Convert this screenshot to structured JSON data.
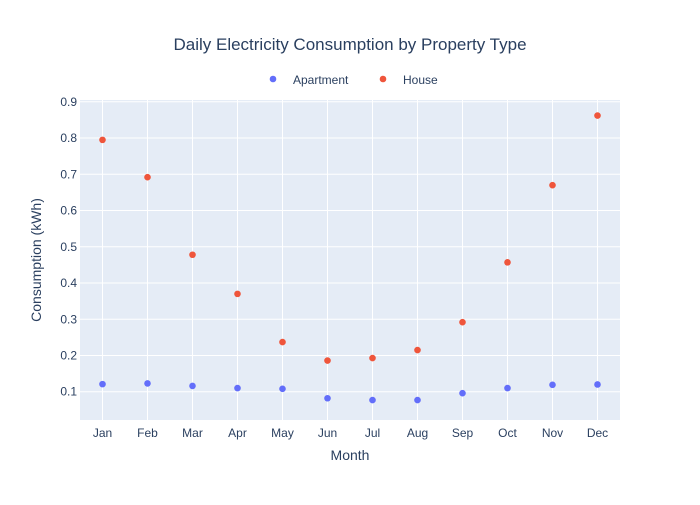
{
  "chart_data": {
    "type": "scatter",
    "title": "Daily Electricity Consumption by Property Type",
    "xlabel": "Month",
    "ylabel": "Consumption (kWh)",
    "categories": [
      "Jan",
      "Feb",
      "Mar",
      "Apr",
      "May",
      "Jun",
      "Jul",
      "Aug",
      "Sep",
      "Oct",
      "Nov",
      "Dec"
    ],
    "ylim": [
      0.022,
      0.905
    ],
    "yticks": [
      0.1,
      0.2,
      0.3,
      0.4,
      0.5,
      0.6,
      0.7,
      0.8,
      0.9
    ],
    "grid": true,
    "legend_position": "top-center",
    "colors": {
      "plot_background": "#e5ecf6",
      "grid": "#ffffff",
      "text": "#2a3f5f"
    },
    "series": [
      {
        "name": "Apartment",
        "color": "#636efa",
        "values": [
          0.121,
          0.123,
          0.116,
          0.11,
          0.108,
          0.082,
          0.077,
          0.077,
          0.096,
          0.11,
          0.119,
          0.12
        ]
      },
      {
        "name": "House",
        "color": "#ef553b",
        "values": [
          0.795,
          0.692,
          0.478,
          0.37,
          0.237,
          0.186,
          0.193,
          0.215,
          0.292,
          0.457,
          0.67,
          0.862
        ]
      }
    ]
  }
}
